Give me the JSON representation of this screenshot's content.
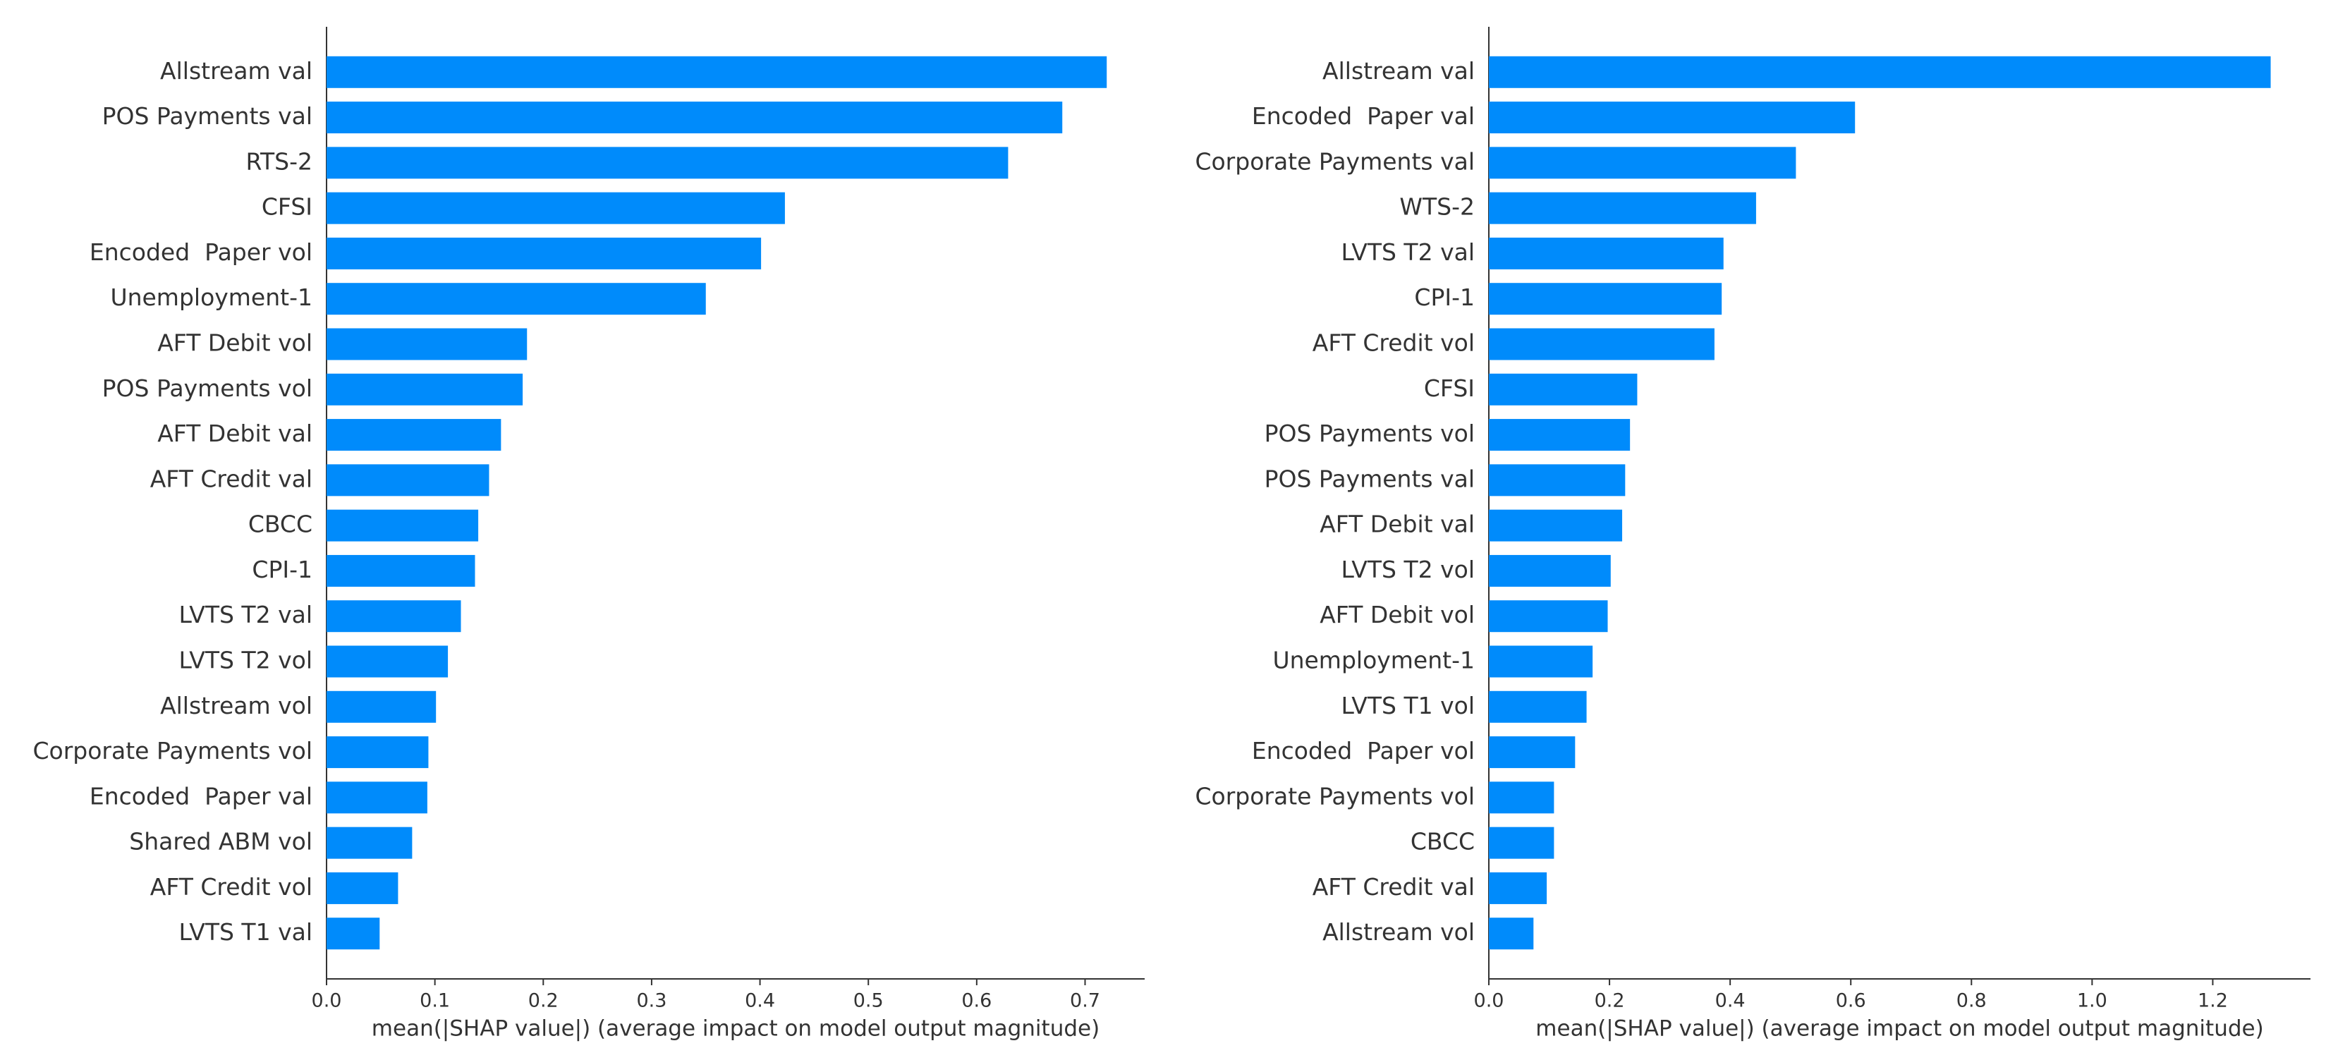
{
  "chart_data": [
    {
      "type": "bar",
      "orientation": "horizontal",
      "color": "#008bfb",
      "xlabel": "mean(|SHAP value|) (average impact on model output magnitude)",
      "categories": [
        "Allstream val",
        "POS Payments val",
        "RTS-2",
        "CFSI",
        "Encoded  Paper vol",
        "Unemployment-1",
        "AFT Debit vol",
        "POS Payments vol",
        "AFT Debit val",
        "AFT Credit val",
        "CBCC",
        "CPI-1",
        "LVTS T2 val",
        "LVTS T2 vol",
        "Allstream vol",
        "Corporate Payments vol",
        "Encoded  Paper val",
        "Shared ABM vol",
        "AFT Credit vol",
        "LVTS T1 val"
      ],
      "values": [
        0.72,
        0.679,
        0.629,
        0.423,
        0.401,
        0.35,
        0.185,
        0.181,
        0.161,
        0.15,
        0.14,
        0.137,
        0.124,
        0.112,
        0.101,
        0.094,
        0.093,
        0.079,
        0.066,
        0.049
      ],
      "xlim": [
        0,
        0.755
      ],
      "xticks": [
        {
          "value": 0,
          "label": "0.0"
        },
        0.1,
        0.2,
        0.3,
        0.4,
        0.5,
        0.6,
        0.7
      ]
    },
    {
      "type": "bar",
      "orientation": "horizontal",
      "color": "#008bfb",
      "xlabel": "mean(|SHAP value|) (average impact on model output magnitude)",
      "categories": [
        "Allstream val",
        "Encoded  Paper val",
        "Corporate Payments val",
        "WTS-2",
        "LVTS T2 val",
        "CPI-1",
        "AFT Credit vol",
        "CFSI",
        "POS Payments vol",
        "POS Payments val",
        "AFT Debit val",
        "LVTS T2 vol",
        "AFT Debit vol",
        "Unemployment-1",
        "LVTS T1 vol",
        "Encoded  Paper vol",
        "Corporate Payments vol",
        "CBCC",
        "AFT Credit val",
        "Allstream vol"
      ],
      "values": [
        1.296,
        0.607,
        0.509,
        0.443,
        0.389,
        0.386,
        0.374,
        0.246,
        0.234,
        0.226,
        0.221,
        0.202,
        0.197,
        0.172,
        0.162,
        0.143,
        0.108,
        0.108,
        0.096,
        0.074
      ],
      "xlim": [
        0,
        1.362
      ],
      "xticks": [
        {
          "value": 0,
          "label": "0.0"
        },
        0.2,
        0.4,
        0.6,
        0.8,
        {
          "value": 1,
          "label": "1.0"
        },
        1.2
      ]
    }
  ]
}
